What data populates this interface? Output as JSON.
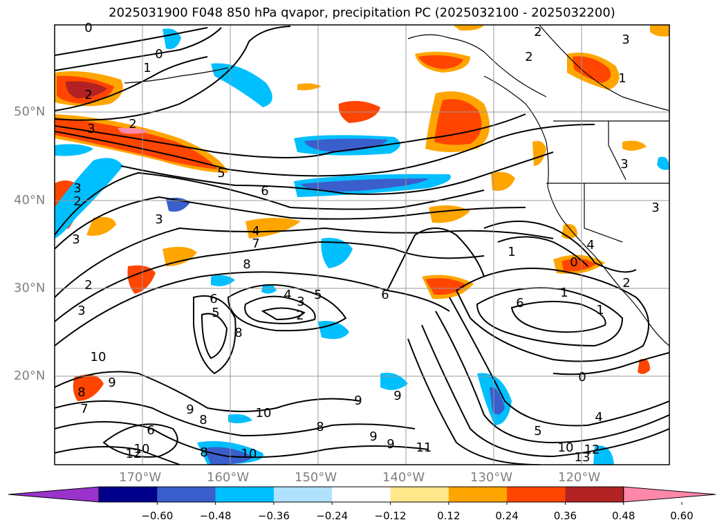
{
  "title": "2025031900 F048 850 hPa qvapor, precipitation PC (2025032100 - 2025032200)",
  "map": {
    "lat_labels": [
      "50°N",
      "40°N",
      "30°N",
      "20°N"
    ],
    "lon_labels": [
      "170°W",
      "160°W",
      "150°W",
      "140°W",
      "130°W",
      "120°W"
    ],
    "grid": true
  },
  "colorbar": {
    "colors": [
      "#9933cc",
      "#00008b",
      "#3a5fcd",
      "#00bfff",
      "#b0e2ff",
      "#ffffff",
      "#ffe78a",
      "#ffa500",
      "#ff4500",
      "#b22222",
      "#ff88aa"
    ],
    "tick_labels": [
      "−0.60",
      "−0.48",
      "−0.36",
      "−0.24",
      "−0.12",
      "0.12",
      "0.24",
      "0.36",
      "0.48",
      "0.60"
    ],
    "extend": "both"
  },
  "contour_labels": [
    "0",
    "0",
    "1",
    "2",
    "2",
    "3",
    "2",
    "5",
    "6",
    "3",
    "4",
    "7",
    "8",
    "3",
    "2",
    "3",
    "4",
    "3",
    "5",
    "2",
    "6",
    "5",
    "8",
    "6",
    "1",
    "4",
    "0",
    "2",
    "1",
    "6",
    "1",
    "0",
    "10",
    "9",
    "8",
    "7",
    "9",
    "8",
    "6",
    "8",
    "9",
    "12",
    "10",
    "8",
    "10",
    "9",
    "9",
    "10",
    "9",
    "11",
    "5",
    "10",
    "12",
    "13",
    "4",
    "2",
    "2",
    "3",
    "1",
    "3",
    "3",
    "3"
  ]
}
